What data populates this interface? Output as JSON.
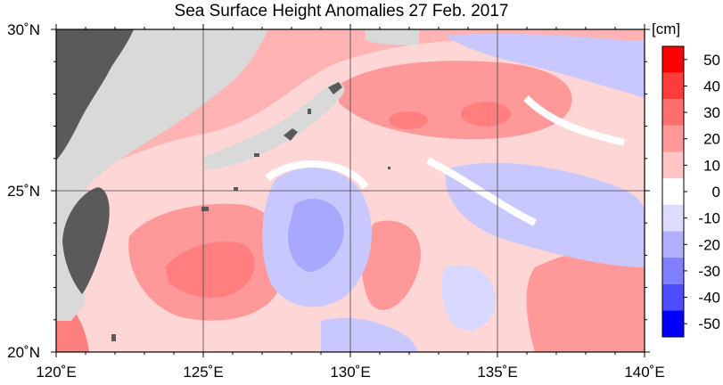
{
  "title": "Sea Surface Height Anomalies  27 Feb. 2017",
  "map": {
    "lon_range": [
      120,
      140
    ],
    "lat_range": [
      20,
      30
    ],
    "lon_ticks": [
      {
        "value": 120,
        "label": "120˚E"
      },
      {
        "value": 125,
        "label": "125˚E"
      },
      {
        "value": 130,
        "label": "130˚E"
      },
      {
        "value": 135,
        "label": "135˚E"
      },
      {
        "value": 140,
        "label": "140˚E"
      }
    ],
    "lat_ticks": [
      {
        "value": 30,
        "label": "30˚N"
      },
      {
        "value": 25,
        "label": "25˚N"
      },
      {
        "value": 20,
        "label": "20˚N"
      }
    ],
    "land_color": "#5a5a5a",
    "mask_color": "#d9d9d9",
    "grid": true
  },
  "colorbar": {
    "unit": "[cm]",
    "ticks": [
      "50",
      "40",
      "30",
      "20",
      "10",
      "0",
      "-10",
      "-20",
      "-30",
      "-40",
      "-50"
    ],
    "bins": [
      "#ff0000",
      "#ff3c3c",
      "#ff6e6e",
      "#ff9999",
      "#ffc4c4",
      "#ffffff",
      "#dcdcff",
      "#b0b0ff",
      "#8080ff",
      "#4d4dff",
      "#0000ff"
    ]
  }
}
